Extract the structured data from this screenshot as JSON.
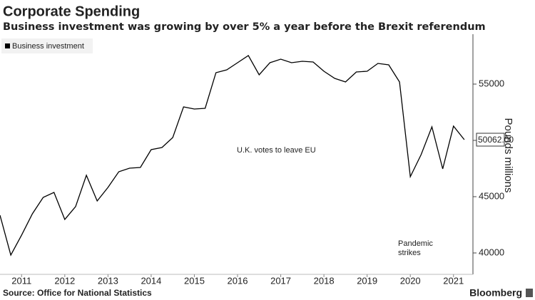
{
  "chart_data": {
    "type": "line",
    "title": "Corporate Spending",
    "subtitle": "Business investment was growing by over 5% a year before the Brexit referendum",
    "source": "Source: Office for National Statistics",
    "brand": "Bloomberg",
    "y_axis_label": "Pounds millions",
    "legend": "top-left",
    "grid": false,
    "annotations": [
      "U.K. votes to leave EU",
      "Pandemic strikes"
    ],
    "x": [
      2010.5,
      2010.75,
      2011,
      2011.25,
      2011.5,
      2011.75,
      2012,
      2012.25,
      2012.5,
      2012.75,
      2013,
      2013.25,
      2013.5,
      2013.75,
      2014,
      2014.25,
      2014.5,
      2014.75,
      2015,
      2015.25,
      2015.5,
      2015.75,
      2016,
      2016.25,
      2016.5,
      2016.75,
      2017,
      2017.25,
      2017.5,
      2017.75,
      2018,
      2018.25,
      2018.5,
      2018.75,
      2019,
      2019.25,
      2019.5,
      2019.75,
      2020,
      2020.25,
      2020.5,
      2020.75,
      2021,
      2021.25
    ],
    "series": [
      {
        "name": "Business investment",
        "color": "#000000",
        "values": [
          43354,
          39810,
          41583,
          43481,
          44937,
          45380,
          42975,
          44114,
          46899,
          44620,
          45823,
          47215,
          47532,
          47595,
          49177,
          49367,
          50253,
          52975,
          52785,
          52848,
          56013,
          56266,
          56899,
          57532,
          55823,
          56899,
          57215,
          56899,
          57025,
          56962,
          56139,
          55506,
          55190,
          56076,
          56139,
          56835,
          56709,
          55190,
          46772,
          48734,
          51203,
          47468,
          51266,
          50062
        ],
        "value_labels": [
          null,
          null,
          null,
          null,
          null,
          null,
          null,
          null,
          null,
          null,
          null,
          null,
          null,
          null,
          null,
          null,
          null,
          null,
          null,
          null,
          null,
          null,
          null,
          null,
          null,
          null,
          null,
          null,
          null,
          null,
          null,
          null,
          null,
          null,
          null,
          null,
          null,
          null,
          null,
          null,
          null,
          null,
          null,
          "50062.00"
        ]
      }
    ],
    "xlim": [
      2010.5,
      2021.45
    ],
    "xticks": [
      2011,
      2012,
      2013,
      2014,
      2015,
      2016,
      2017,
      2018,
      2019,
      2020,
      2021
    ],
    "ylim": [
      38100,
      59430
    ],
    "yticks": [
      40000,
      45000,
      50000,
      55000
    ]
  }
}
